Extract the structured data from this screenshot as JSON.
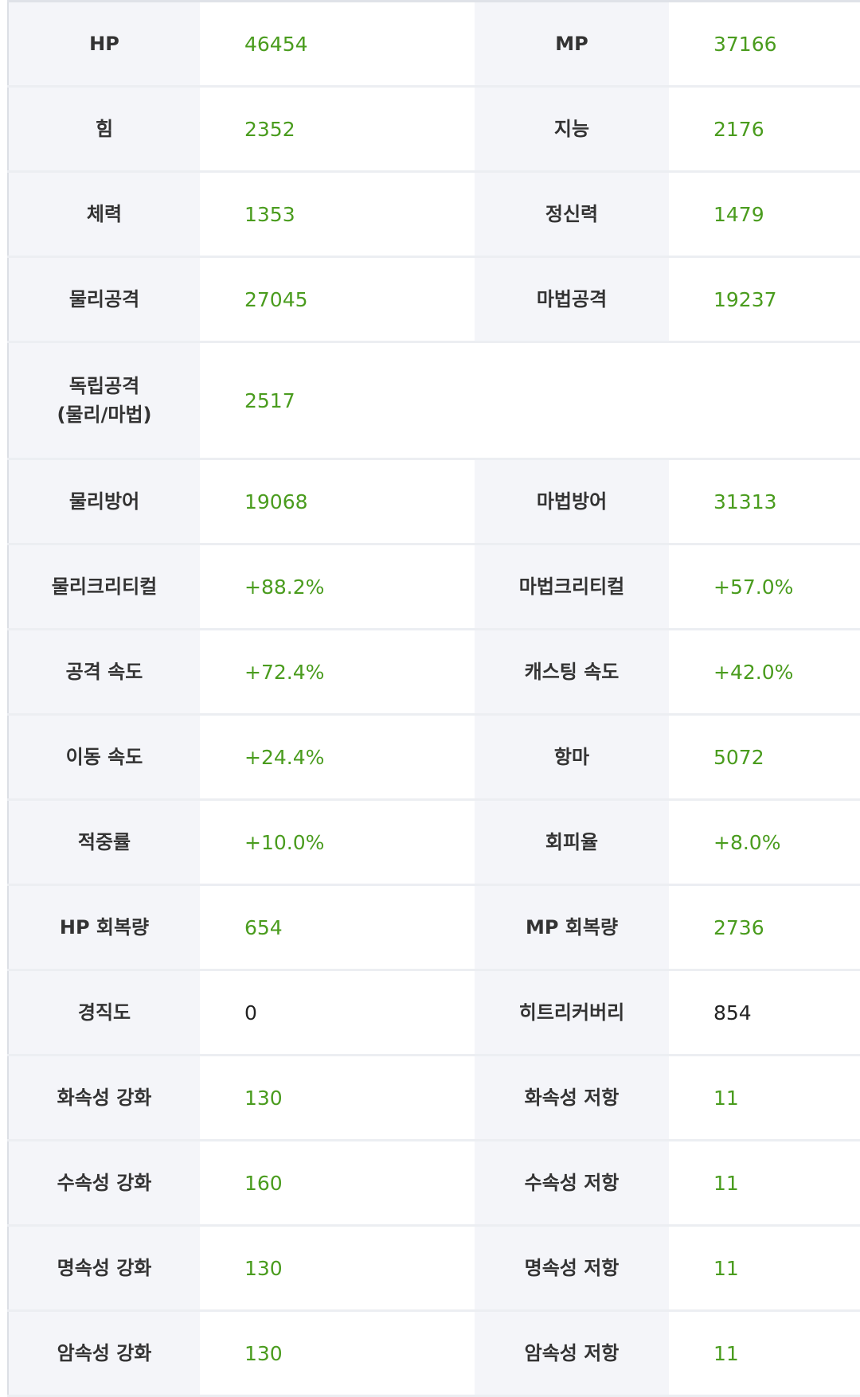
{
  "colors": {
    "value": "#4a9c1e",
    "label_bg": "#f4f5f9",
    "plain_value": "#222222"
  },
  "rows": [
    {
      "l1": "HP",
      "v1": "46454",
      "l2": "MP",
      "v2": "37166"
    },
    {
      "l1": "힘",
      "v1": "2352",
      "l2": "지능",
      "v2": "2176"
    },
    {
      "l1": "체력",
      "v1": "1353",
      "l2": "정신력",
      "v2": "1479"
    },
    {
      "l1": "물리공격",
      "v1": "27045",
      "l2": "마법공격",
      "v2": "19237"
    },
    {
      "l1": "독립공격\n(물리/마법)",
      "v1": "2517"
    },
    {
      "l1": "물리방어",
      "v1": "19068",
      "l2": "마법방어",
      "v2": "31313"
    },
    {
      "l1": "물리크리티컬",
      "v1": "+88.2%",
      "l2": "마법크리티컬",
      "v2": "+57.0%"
    },
    {
      "l1": "공격 속도",
      "v1": "+72.4%",
      "l2": "캐스팅 속도",
      "v2": "+42.0%"
    },
    {
      "l1": "이동 속도",
      "v1": "+24.4%",
      "l2": "항마",
      "v2": "5072"
    },
    {
      "l1": "적중률",
      "v1": "+10.0%",
      "l2": "회피율",
      "v2": "+8.0%"
    },
    {
      "l1": "HP 회복량",
      "v1": "654",
      "l2": "MP 회복량",
      "v2": "2736"
    },
    {
      "l1": "경직도",
      "v1": "0",
      "l2": "히트리커버리",
      "v2": "854"
    },
    {
      "l1": "화속성 강화",
      "v1": "130",
      "l2": "화속성 저항",
      "v2": "11"
    },
    {
      "l1": "수속성 강화",
      "v1": "160",
      "l2": "수속성 저항",
      "v2": "11"
    },
    {
      "l1": "명속성 강화",
      "v1": "130",
      "l2": "명속성 저항",
      "v2": "11"
    },
    {
      "l1": "암속성 강화",
      "v1": "130",
      "l2": "암속성 저항",
      "v2": "11"
    }
  ]
}
